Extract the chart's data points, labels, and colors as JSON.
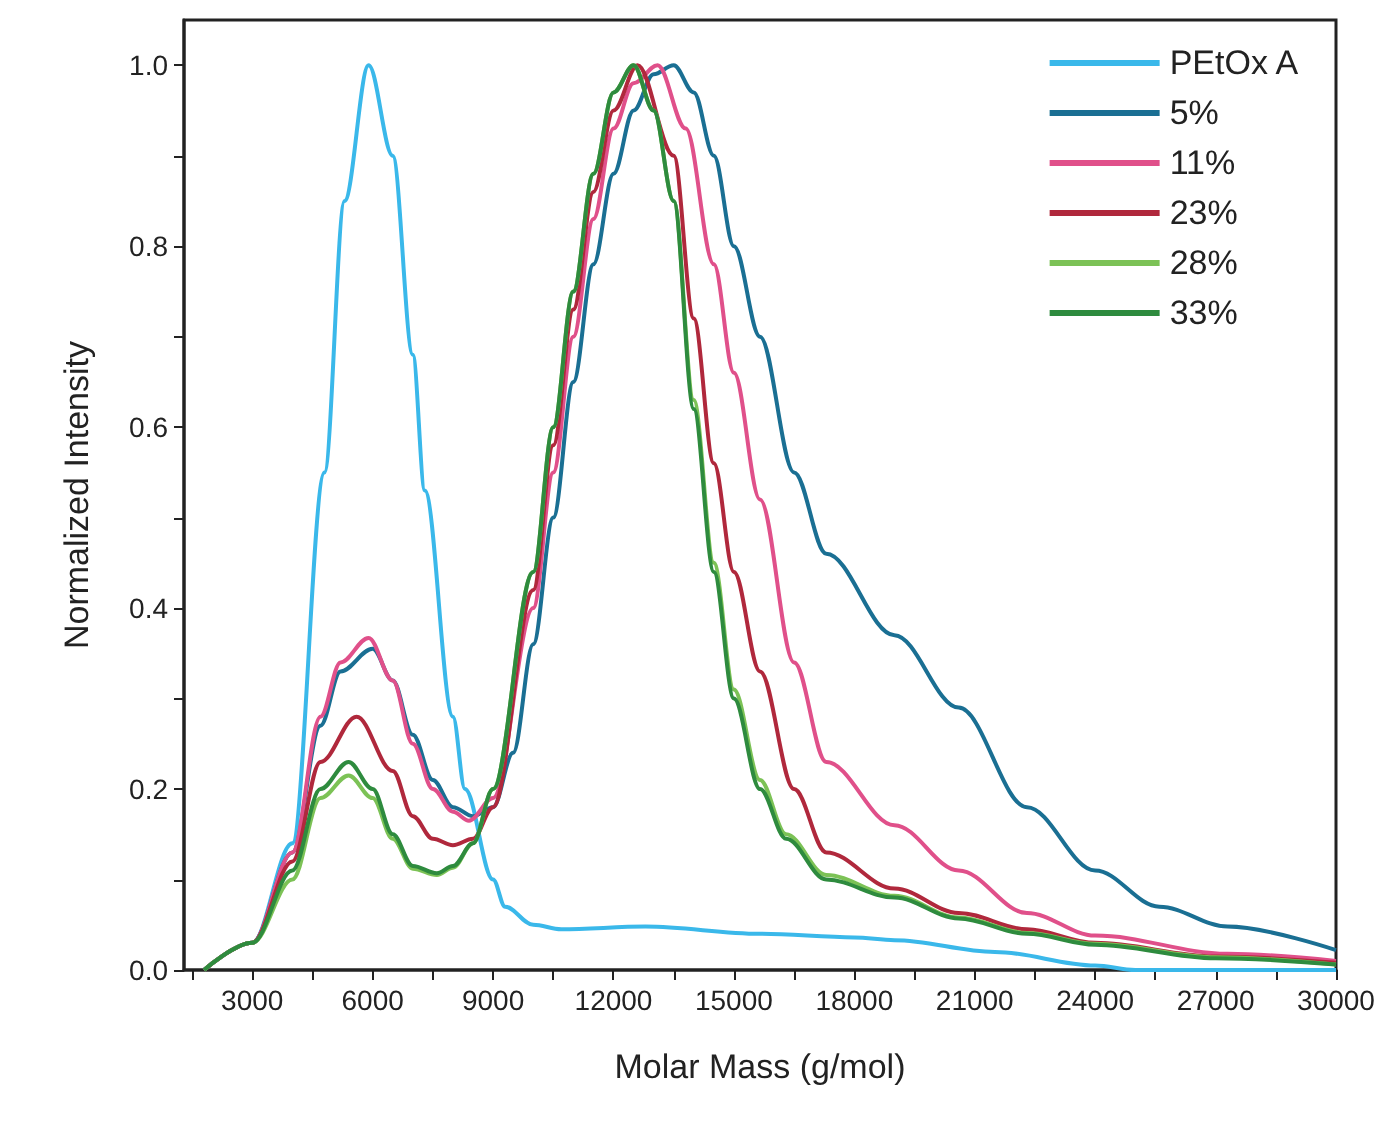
{
  "chart_data": {
    "type": "line",
    "xlabel": "Molar Mass (g/mol)",
    "ylabel": "Normalized Intensity",
    "xlim": [
      1300,
      30000
    ],
    "ylim": [
      0,
      1.05
    ],
    "xticks": [
      {
        "value": 1500,
        "label": null
      },
      3000,
      {
        "value": 4500,
        "label": null
      },
      6000,
      {
        "value": 7500,
        "label": null
      },
      9000,
      {
        "value": 10500,
        "label": null
      },
      12000,
      {
        "value": 13500,
        "label": null
      },
      15000,
      {
        "value": 16500,
        "label": null
      },
      18000,
      {
        "value": 19500,
        "label": null
      },
      21000,
      {
        "value": 22500,
        "label": null
      },
      24000,
      {
        "value": 25500,
        "label": null
      },
      27000,
      {
        "value": 28500,
        "label": null
      },
      30000
    ],
    "yticks": [
      {
        "value": 0,
        "label": "0.0"
      },
      {
        "value": 0.1,
        "label": null
      },
      {
        "value": 0.2,
        "label": "0.2"
      },
      {
        "value": 0.3,
        "label": null
      },
      {
        "value": 0.4,
        "label": "0.4"
      },
      {
        "value": 0.5,
        "label": null
      },
      {
        "value": 0.6,
        "label": "0.6"
      },
      {
        "value": 0.7,
        "label": null
      },
      {
        "value": 0.8,
        "label": "0.8"
      },
      {
        "value": 0.9,
        "label": null
      },
      {
        "value": 1.0,
        "label": "1.0"
      }
    ],
    "grid": false,
    "legend": "top right",
    "marker": "none",
    "line_style": "solid",
    "series": [
      {
        "name": "PEtOx A",
        "color": "#3ab8ea",
        "x": [
          1800,
          3000,
          4000,
          4800,
          5300,
          5900,
          6500,
          7000,
          7300,
          8000,
          8300,
          9000,
          9300,
          10000,
          10700,
          12800,
          15650,
          18000,
          19000,
          21500,
          24000,
          25000,
          30000
        ],
        "values": [
          0,
          0.03,
          0.14,
          0.55,
          0.85,
          1.0,
          0.9,
          0.68,
          0.53,
          0.28,
          0.2,
          0.1,
          0.07,
          0.05,
          0.045,
          0.048,
          0.04,
          0.036,
          0.033,
          0.02,
          0.005,
          0,
          0
        ]
      },
      {
        "name": "5%",
        "color": "#1a6f93",
        "x": [
          1800,
          3000,
          4000,
          4700,
          5200,
          6000,
          6500,
          7000,
          7500,
          8000,
          8500,
          9000,
          9500,
          10000,
          10500,
          11000,
          11500,
          12000,
          12500,
          13000,
          13500,
          14000,
          14500,
          15000,
          15650,
          16500,
          17300,
          19000,
          20600,
          22300,
          24000,
          25600,
          27300,
          30000
        ],
        "values": [
          0,
          0.03,
          0.13,
          0.27,
          0.33,
          0.355,
          0.32,
          0.26,
          0.21,
          0.18,
          0.17,
          0.18,
          0.24,
          0.36,
          0.5,
          0.65,
          0.78,
          0.88,
          0.95,
          0.99,
          1.0,
          0.97,
          0.9,
          0.8,
          0.7,
          0.55,
          0.46,
          0.37,
          0.29,
          0.18,
          0.11,
          0.07,
          0.048,
          0.022
        ]
      },
      {
        "name": "11%",
        "color": "#e0508a",
        "x": [
          1800,
          3000,
          4000,
          4700,
          5200,
          5900,
          6500,
          7000,
          7500,
          8000,
          8400,
          9000,
          10000,
          10500,
          11000,
          11500,
          12000,
          12500,
          13100,
          13800,
          14500,
          15000,
          15650,
          16500,
          17300,
          19000,
          20600,
          22300,
          24000,
          27300,
          30000
        ],
        "values": [
          0,
          0.03,
          0.13,
          0.28,
          0.34,
          0.367,
          0.32,
          0.25,
          0.2,
          0.175,
          0.165,
          0.19,
          0.4,
          0.55,
          0.7,
          0.83,
          0.93,
          0.98,
          1.0,
          0.93,
          0.78,
          0.66,
          0.52,
          0.34,
          0.23,
          0.16,
          0.11,
          0.063,
          0.038,
          0.018,
          0.01
        ]
      },
      {
        "name": "23%",
        "color": "#b0283c",
        "x": [
          1800,
          3000,
          4000,
          4700,
          5600,
          6500,
          7000,
          7500,
          8000,
          8500,
          9000,
          10000,
          10500,
          11000,
          11500,
          12000,
          12600,
          13500,
          14000,
          14500,
          15000,
          15650,
          16500,
          17300,
          19000,
          20600,
          22300,
          24000,
          27000,
          30000
        ],
        "values": [
          0,
          0.03,
          0.12,
          0.23,
          0.28,
          0.22,
          0.17,
          0.145,
          0.138,
          0.145,
          0.18,
          0.42,
          0.58,
          0.73,
          0.86,
          0.95,
          1.0,
          0.9,
          0.72,
          0.56,
          0.44,
          0.33,
          0.2,
          0.13,
          0.09,
          0.063,
          0.045,
          0.03,
          0.015,
          0.008
        ]
      },
      {
        "name": "28%",
        "color": "#7cc256",
        "x": [
          1800,
          3000,
          4000,
          4700,
          5400,
          6000,
          6500,
          7000,
          7600,
          8000,
          8500,
          9000,
          10000,
          10500,
          11000,
          11500,
          12000,
          12500,
          13000,
          13500,
          14000,
          14500,
          15000,
          15650,
          16300,
          17300,
          19000,
          20600,
          22300,
          24000,
          27000,
          30000
        ],
        "values": [
          0,
          0.03,
          0.1,
          0.19,
          0.215,
          0.19,
          0.145,
          0.112,
          0.105,
          0.113,
          0.14,
          0.2,
          0.44,
          0.6,
          0.75,
          0.88,
          0.97,
          1.0,
          0.95,
          0.85,
          0.63,
          0.45,
          0.31,
          0.21,
          0.15,
          0.105,
          0.082,
          0.058,
          0.041,
          0.029,
          0.014,
          0.006
        ]
      },
      {
        "name": "33%",
        "color": "#2e8b3e",
        "x": [
          1800,
          3000,
          4000,
          4700,
          5400,
          6000,
          6500,
          7000,
          7600,
          8000,
          8500,
          9000,
          10000,
          10500,
          11000,
          11500,
          12000,
          12500,
          13000,
          13500,
          14000,
          14500,
          15000,
          15650,
          16300,
          17300,
          19000,
          20600,
          22300,
          24000,
          27000,
          30000
        ],
        "values": [
          0,
          0.03,
          0.11,
          0.2,
          0.23,
          0.2,
          0.15,
          0.115,
          0.107,
          0.115,
          0.14,
          0.2,
          0.44,
          0.6,
          0.75,
          0.88,
          0.97,
          1.0,
          0.95,
          0.85,
          0.62,
          0.44,
          0.3,
          0.2,
          0.145,
          0.1,
          0.08,
          0.057,
          0.04,
          0.028,
          0.013,
          0.006
        ]
      }
    ]
  }
}
